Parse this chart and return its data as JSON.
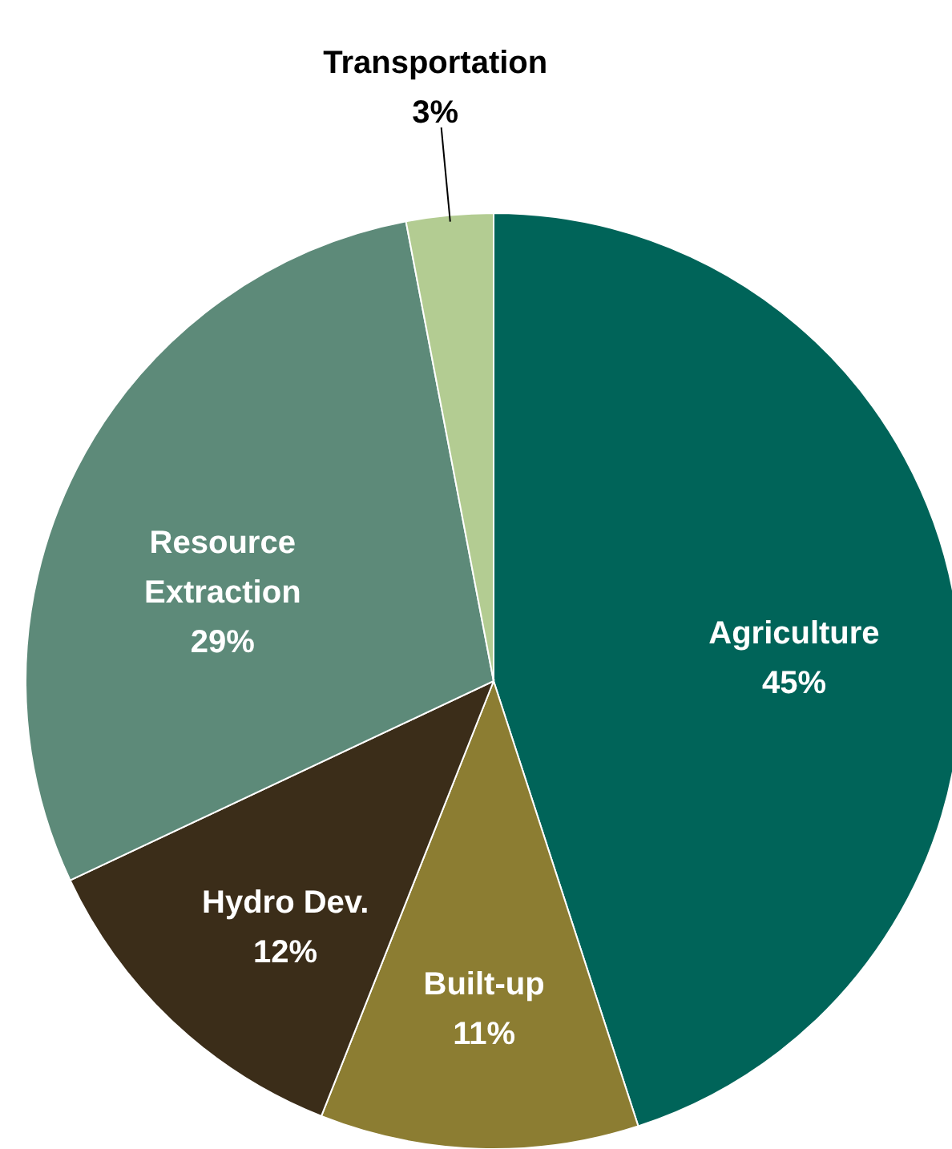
{
  "chart_data": {
    "type": "pie",
    "categories": [
      "Agriculture",
      "Built-up",
      "Hydro Dev.",
      "Resource Extraction",
      "Transportation"
    ],
    "values": [
      45,
      11,
      12,
      29,
      3
    ],
    "value_labels": [
      "45%",
      "11%",
      "12%",
      "29%",
      "3%"
    ],
    "colors": [
      "#006459",
      "#8c7d32",
      "#3b2d19",
      "#5d8a79",
      "#b3cc92"
    ]
  }
}
